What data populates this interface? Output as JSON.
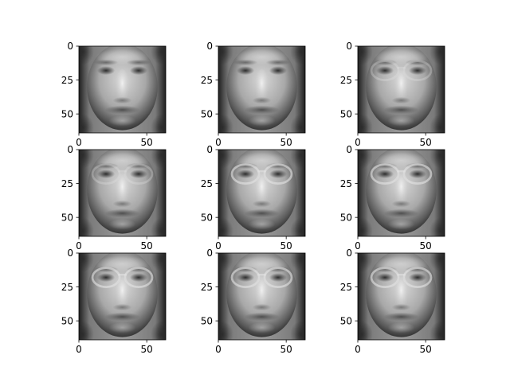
{
  "chart_data": {
    "type": "image-grid",
    "rows": 3,
    "cols": 3,
    "colormap": "gray",
    "image_shape": [
      64,
      64
    ],
    "subplots": [
      {
        "index": 0,
        "variant": "no-glasses",
        "xticks": [
          0,
          50
        ],
        "yticks": [
          0,
          25,
          50
        ],
        "xlim": [
          0,
          64
        ],
        "ylim": [
          64,
          0
        ]
      },
      {
        "index": 1,
        "variant": "no-glasses",
        "xticks": [
          0,
          50
        ],
        "yticks": [
          0,
          25,
          50
        ],
        "xlim": [
          0,
          64
        ],
        "ylim": [
          64,
          0
        ]
      },
      {
        "index": 2,
        "variant": "faint-glasses",
        "xticks": [
          0,
          50
        ],
        "yticks": [
          0,
          25,
          50
        ],
        "xlim": [
          0,
          64
        ],
        "ylim": [
          64,
          0
        ]
      },
      {
        "index": 3,
        "variant": "faint-glasses",
        "xticks": [
          0,
          50
        ],
        "yticks": [
          0,
          25,
          50
        ],
        "xlim": [
          0,
          64
        ],
        "ylim": [
          64,
          0
        ]
      },
      {
        "index": 4,
        "variant": "glasses",
        "xticks": [
          0,
          50
        ],
        "yticks": [
          0,
          25,
          50
        ],
        "xlim": [
          0,
          64
        ],
        "ylim": [
          64,
          0
        ]
      },
      {
        "index": 5,
        "variant": "glasses",
        "xticks": [
          0,
          50
        ],
        "yticks": [
          0,
          25,
          50
        ],
        "xlim": [
          0,
          64
        ],
        "ylim": [
          64,
          0
        ]
      },
      {
        "index": 6,
        "variant": "glasses",
        "xticks": [
          0,
          50
        ],
        "yticks": [
          0,
          25,
          50
        ],
        "xlim": [
          0,
          64
        ],
        "ylim": [
          64,
          0
        ]
      },
      {
        "index": 7,
        "variant": "glasses",
        "xticks": [
          0,
          50
        ],
        "yticks": [
          0,
          25,
          50
        ],
        "xlim": [
          0,
          64
        ],
        "ylim": [
          64,
          0
        ]
      },
      {
        "index": 8,
        "variant": "glasses",
        "xticks": [
          0,
          50
        ],
        "yticks": [
          0,
          25,
          50
        ],
        "xlim": [
          0,
          64
        ],
        "ylim": [
          64,
          0
        ]
      }
    ]
  }
}
